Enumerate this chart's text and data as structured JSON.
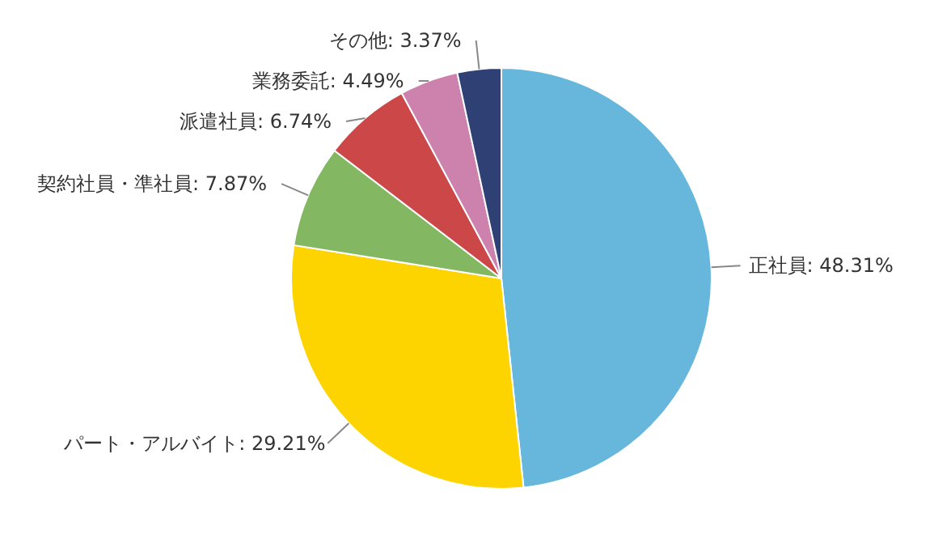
{
  "chart_data": {
    "type": "pie",
    "categories": [
      "正社員",
      "パート・アルバイト",
      "契約社員・準社員",
      "派遣社員",
      "業務委託",
      "その他"
    ],
    "values": [
      48.31,
      29.21,
      7.87,
      6.74,
      4.49,
      3.37
    ],
    "colors": [
      "#67b7dc",
      "#fdd400",
      "#84b761",
      "#cc4748",
      "#cd82ad",
      "#2f4074"
    ],
    "value_labels": [
      ": 48.31%",
      ": 29.21%",
      ": 7.87%",
      ": 6.74%",
      ": 4.49%",
      ": 3.37%"
    ]
  }
}
